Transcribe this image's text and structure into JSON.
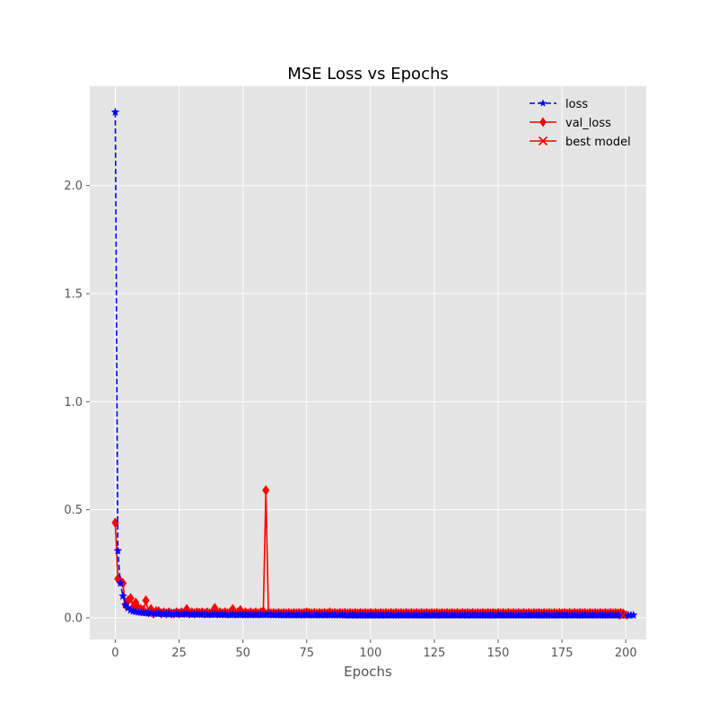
{
  "chart_data": {
    "type": "line",
    "title": "MSE Loss vs Epochs",
    "xlabel": "Epochs",
    "ylabel": "",
    "xlim": [
      -10,
      208
    ],
    "ylim": [
      -0.1,
      2.46
    ],
    "xticks": [
      0,
      25,
      50,
      75,
      100,
      125,
      150,
      175,
      200
    ],
    "yticks": [
      0.0,
      0.5,
      1.0,
      1.5,
      2.0
    ],
    "xtick_labels": [
      "0",
      "25",
      "50",
      "75",
      "100",
      "125",
      "150",
      "175",
      "200"
    ],
    "ytick_labels": [
      "0.0",
      "0.5",
      "1.0",
      "1.5",
      "2.0"
    ],
    "grid": true,
    "legend_position": "top-right",
    "series": [
      {
        "name": "loss",
        "color": "#0000ff",
        "linestyle": "dashed",
        "marker": "star",
        "x_start": 0,
        "x_step": 1,
        "y": [
          2.34,
          0.31,
          0.16,
          0.1,
          0.06,
          0.045,
          0.035,
          0.03,
          0.028,
          0.026,
          0.024,
          0.023,
          0.022,
          0.021,
          0.021,
          0.02,
          0.02,
          0.019,
          0.019,
          0.019,
          0.018,
          0.018,
          0.018,
          0.018,
          0.017,
          0.017,
          0.017,
          0.017,
          0.017,
          0.016,
          0.016,
          0.016,
          0.016,
          0.016,
          0.016,
          0.015,
          0.015,
          0.015,
          0.015,
          0.015,
          0.015,
          0.015,
          0.015,
          0.015,
          0.014,
          0.014,
          0.014,
          0.014,
          0.014,
          0.014,
          0.014,
          0.014,
          0.014,
          0.014,
          0.014,
          0.014,
          0.014,
          0.014,
          0.014,
          0.014,
          0.014,
          0.014,
          0.014,
          0.014,
          0.014,
          0.013,
          0.013,
          0.013,
          0.013,
          0.013,
          0.013,
          0.013,
          0.013,
          0.013,
          0.013,
          0.013,
          0.013,
          0.013,
          0.013,
          0.013,
          0.013,
          0.013,
          0.013,
          0.013,
          0.013,
          0.013,
          0.013,
          0.013,
          0.013,
          0.013,
          0.012,
          0.012,
          0.012,
          0.012,
          0.012,
          0.012,
          0.012,
          0.012,
          0.012,
          0.012,
          0.012,
          0.012,
          0.012,
          0.012,
          0.012,
          0.012,
          0.012,
          0.012,
          0.012,
          0.012,
          0.012,
          0.012,
          0.012,
          0.012,
          0.012,
          0.012,
          0.012,
          0.012,
          0.012,
          0.012,
          0.012,
          0.012,
          0.012,
          0.012,
          0.012,
          0.012,
          0.012,
          0.012,
          0.012,
          0.012,
          0.012,
          0.012,
          0.012,
          0.012,
          0.012,
          0.012,
          0.012,
          0.012,
          0.012,
          0.012,
          0.012,
          0.012,
          0.012,
          0.012,
          0.012,
          0.012,
          0.012,
          0.012,
          0.012,
          0.012,
          0.012,
          0.012,
          0.012,
          0.012,
          0.012,
          0.012,
          0.012,
          0.012,
          0.012,
          0.012,
          0.012,
          0.012,
          0.012,
          0.012,
          0.012,
          0.012,
          0.012,
          0.012,
          0.012,
          0.012,
          0.012,
          0.012,
          0.012,
          0.012,
          0.012,
          0.012,
          0.012,
          0.012,
          0.012,
          0.012,
          0.012,
          0.012,
          0.012,
          0.012,
          0.012,
          0.012,
          0.012,
          0.012,
          0.012,
          0.012,
          0.012,
          0.012,
          0.012,
          0.012,
          0.012,
          0.012,
          0.012,
          0.012,
          0.012,
          0.012,
          0.012,
          0.012,
          0.012,
          0.012
        ]
      },
      {
        "name": "val_loss",
        "color": "#ff0000",
        "linestyle": "solid",
        "marker": "diamond",
        "x_start": 0,
        "x_step": 1,
        "y": [
          0.44,
          0.18,
          0.17,
          0.16,
          0.06,
          0.08,
          0.09,
          0.05,
          0.07,
          0.045,
          0.04,
          0.035,
          0.08,
          0.025,
          0.04,
          0.02,
          0.03,
          0.03,
          0.02,
          0.025,
          0.02,
          0.025,
          0.02,
          0.02,
          0.025,
          0.02,
          0.025,
          0.022,
          0.04,
          0.02,
          0.025,
          0.02,
          0.025,
          0.022,
          0.025,
          0.02,
          0.025,
          0.02,
          0.025,
          0.045,
          0.02,
          0.025,
          0.02,
          0.025,
          0.02,
          0.025,
          0.04,
          0.02,
          0.025,
          0.035,
          0.02,
          0.025,
          0.02,
          0.025,
          0.02,
          0.025,
          0.02,
          0.025,
          0.03,
          0.59,
          0.025,
          0.02,
          0.022,
          0.02,
          0.022,
          0.02,
          0.022,
          0.02,
          0.022,
          0.02,
          0.022,
          0.02,
          0.022,
          0.02,
          0.022,
          0.025,
          0.022,
          0.02,
          0.022,
          0.02,
          0.022,
          0.02,
          0.022,
          0.02,
          0.025,
          0.02,
          0.022,
          0.02,
          0.022,
          0.02,
          0.022,
          0.02,
          0.022,
          0.02,
          0.022,
          0.02,
          0.022,
          0.02,
          0.022,
          0.02,
          0.022,
          0.02,
          0.022,
          0.02,
          0.022,
          0.02,
          0.022,
          0.02,
          0.022,
          0.02,
          0.022,
          0.02,
          0.022,
          0.02,
          0.022,
          0.02,
          0.022,
          0.02,
          0.022,
          0.02,
          0.022,
          0.02,
          0.022,
          0.02,
          0.022,
          0.02,
          0.022,
          0.02,
          0.022,
          0.02,
          0.022,
          0.02,
          0.022,
          0.02,
          0.022,
          0.02,
          0.022,
          0.02,
          0.022,
          0.02,
          0.022,
          0.02,
          0.022,
          0.02,
          0.022,
          0.02,
          0.022,
          0.02,
          0.022,
          0.02,
          0.022,
          0.02,
          0.022,
          0.02,
          0.022,
          0.02,
          0.022,
          0.02,
          0.022,
          0.02,
          0.022,
          0.02,
          0.022,
          0.02,
          0.022,
          0.02,
          0.022,
          0.02,
          0.022,
          0.02,
          0.022,
          0.02,
          0.022,
          0.02,
          0.022,
          0.02,
          0.022,
          0.02,
          0.022,
          0.02,
          0.022,
          0.02,
          0.022,
          0.02,
          0.022,
          0.02,
          0.022,
          0.02,
          0.022,
          0.02,
          0.022,
          0.02,
          0.022,
          0.02,
          0.022,
          0.02,
          0.022,
          0.02,
          0.022,
          0.02
        ]
      },
      {
        "name": "best model",
        "color": "#ff0000",
        "linestyle": "solid",
        "marker": "x",
        "x": [
          199
        ],
        "y": [
          0.012
        ]
      }
    ]
  },
  "colors": {
    "axes_background": "#e5e5e5",
    "grid": "#ffffff",
    "tick_text": "#555555",
    "title_text": "#000000"
  }
}
